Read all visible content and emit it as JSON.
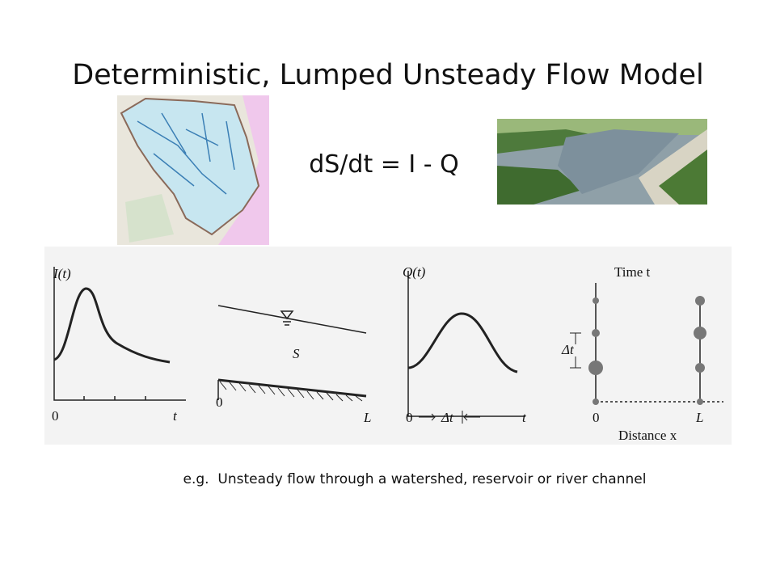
{
  "title": "Deterministic, Lumped Unsteady Flow Model",
  "equation": "dS/dt = I - Q",
  "figure": {
    "inflow": {
      "y_label": "I(t)",
      "origin": "0",
      "x_label": "t"
    },
    "storage": {
      "label": "S",
      "origin": "0",
      "end": "L"
    },
    "outflow": {
      "y_label": "Q(t)",
      "origin": "0",
      "interval": "Δt",
      "x_label": "t"
    },
    "grid": {
      "y_label": "Time t",
      "interval": "Δt",
      "origin": "0",
      "end": "L",
      "x_label": "Distance x"
    }
  },
  "caption": "e.g.  Unsteady flow through a watershed, reservoir or river channel"
}
